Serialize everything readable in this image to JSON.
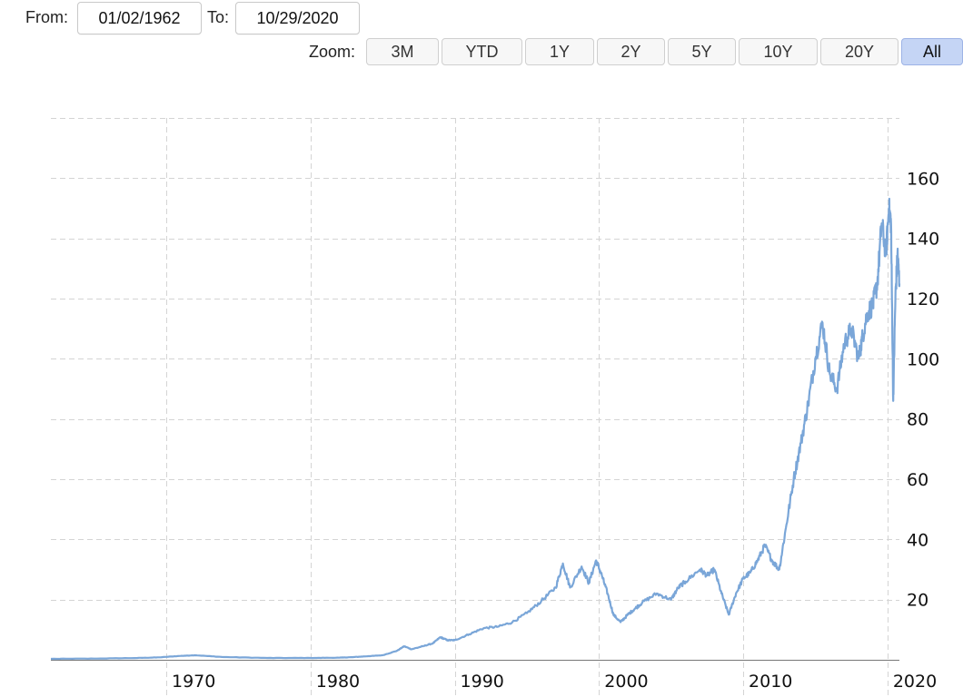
{
  "range_selector": {
    "from_label": "From:",
    "from_value": "01/02/1962",
    "to_label": "To:",
    "to_value": "10/29/2020"
  },
  "zoom": {
    "label": "Zoom:",
    "buttons": [
      "3M",
      "YTD",
      "1Y",
      "2Y",
      "5Y",
      "10Y",
      "20Y",
      "All"
    ],
    "active": "All",
    "active_color": "#c5d5f5"
  },
  "chart_data": {
    "type": "line",
    "title": "",
    "xlabel": "",
    "ylabel": "",
    "xlim": [
      1962.0,
      2020.83
    ],
    "ylim": [
      0,
      180
    ],
    "x_ticks": [
      1970,
      1980,
      1990,
      2000,
      2010,
      2020
    ],
    "y_ticks": [
      20,
      40,
      60,
      80,
      100,
      120,
      140,
      160
    ],
    "y_axis_position": "right",
    "grid": true,
    "line_color": "#7aa6d8",
    "series": [
      {
        "x": [
          1962.0,
          1965.0,
          1968.0,
          1969.5,
          1971.0,
          1972.0,
          1974.0,
          1977.0,
          1980.0,
          1982.0,
          1983.0,
          1984.0,
          1985.0,
          1986.0,
          1986.5,
          1987.0,
          1987.8,
          1988.5,
          1989.0,
          1989.5,
          1990.0,
          1991.0,
          1992.0,
          1993.0,
          1994.0,
          1995.0,
          1996.0,
          1997.0,
          1997.5,
          1998.0,
          1998.8,
          1999.3,
          1999.8,
          2000.2,
          2000.6,
          2001.0,
          2001.5,
          2002.0,
          2002.5,
          2003.0,
          2004.0,
          2005.0,
          2005.5,
          2006.0,
          2007.0,
          2007.5,
          2008.0,
          2008.5,
          2009.0,
          2009.5,
          2010.0,
          2010.5,
          2011.0,
          2011.5,
          2012.0,
          2012.5,
          2013.0,
          2013.5,
          2014.0,
          2014.5,
          2015.0,
          2015.5,
          2016.0,
          2016.5,
          2017.0,
          2017.5,
          2018.0,
          2018.3,
          2018.6,
          2019.0,
          2019.3,
          2019.6,
          2019.9,
          2020.1,
          2020.25,
          2020.4,
          2020.55,
          2020.7,
          2020.83
        ],
        "y": [
          0.3,
          0.4,
          0.6,
          0.8,
          1.3,
          1.5,
          0.9,
          0.6,
          0.6,
          0.7,
          0.9,
          1.2,
          1.5,
          3.0,
          4.5,
          3.5,
          4.5,
          5.5,
          7.5,
          6.5,
          6.5,
          8.5,
          10.5,
          11.0,
          12.5,
          15.5,
          19.5,
          24.0,
          32.0,
          24.0,
          31.0,
          25.5,
          33.0,
          28.0,
          22.0,
          15.0,
          12.5,
          15.0,
          17.0,
          19.0,
          22.0,
          20.0,
          24.0,
          26.0,
          30.0,
          28.0,
          30.0,
          22.0,
          15.0,
          22.0,
          27.0,
          29.0,
          33.0,
          38.0,
          33.0,
          30.0,
          45.0,
          60.0,
          72.0,
          85.0,
          100.0,
          112.0,
          95.0,
          90.0,
          105.0,
          110.0,
          100.0,
          108.0,
          115.0,
          118.0,
          125.0,
          145.0,
          135.0,
          150.0,
          145.0,
          86.0,
          120.0,
          135.0,
          125.0
        ]
      }
    ]
  }
}
